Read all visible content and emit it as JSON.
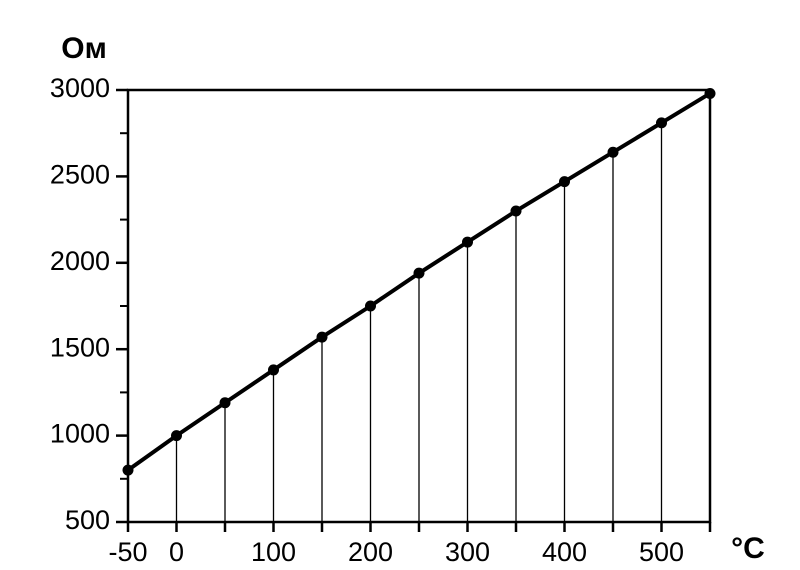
{
  "chart_data": {
    "type": "line",
    "y_label": "Ом",
    "x_label": "°C",
    "x": [
      -50,
      0,
      50,
      100,
      150,
      200,
      250,
      300,
      350,
      400,
      450,
      500,
      550
    ],
    "series": [
      {
        "color": "#000000",
        "values": [
          800,
          1000,
          1190,
          1380,
          1570,
          1750,
          1940,
          2120,
          2300,
          2470,
          2640,
          2810,
          2980
        ]
      }
    ],
    "xlim": [
      -50,
      550
    ],
    "ylim": [
      500,
      3000
    ],
    "xticks": [
      -50,
      0,
      100,
      200,
      300,
      400,
      500
    ],
    "xminorticks": [
      50,
      150,
      250,
      350,
      450,
      550
    ],
    "yticks": [
      500,
      1000,
      1500,
      2000,
      2500,
      3000
    ],
    "yminorticks": [
      750,
      1250,
      1750,
      2250,
      2750
    ],
    "drop_lines": true
  }
}
